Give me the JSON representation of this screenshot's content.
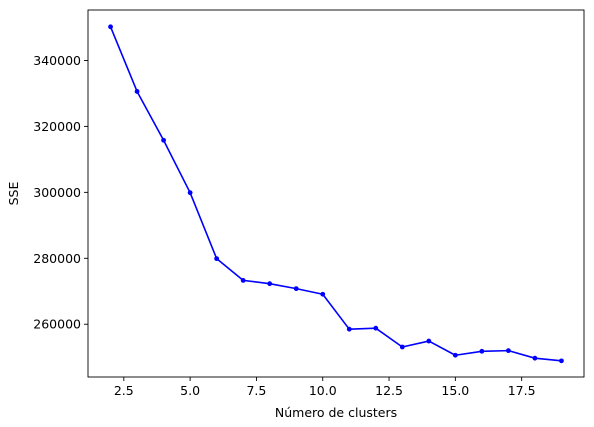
{
  "chart_data": {
    "type": "line",
    "title": "",
    "xlabel": "Número de clusters",
    "ylabel": "SSE",
    "x": [
      2,
      3,
      4,
      5,
      6,
      7,
      8,
      9,
      10,
      11,
      12,
      13,
      14,
      15,
      16,
      17,
      18,
      19
    ],
    "series": [
      {
        "values": [
          350200,
          330600,
          315800,
          299900,
          279900,
          273300,
          272300,
          270800,
          269100,
          258500,
          258800,
          253100,
          254900,
          250600,
          251800,
          252000,
          249700,
          248900
        ],
        "color": "#0000ff",
        "marker": "circle"
      }
    ],
    "xlim": [
      1.15,
      19.85
    ],
    "ylim": [
      244000,
      355300
    ],
    "xticks": [
      2.5,
      5.0,
      7.5,
      10.0,
      12.5,
      15.0,
      17.5
    ],
    "xtick_labels": [
      "2.5",
      "5.0",
      "7.5",
      "10.0",
      "12.5",
      "15.0",
      "17.5"
    ],
    "yticks": [
      260000,
      280000,
      300000,
      320000,
      340000
    ],
    "ytick_labels": [
      "260000",
      "280000",
      "300000",
      "320000",
      "340000"
    ],
    "grid": false,
    "legend": "none"
  }
}
